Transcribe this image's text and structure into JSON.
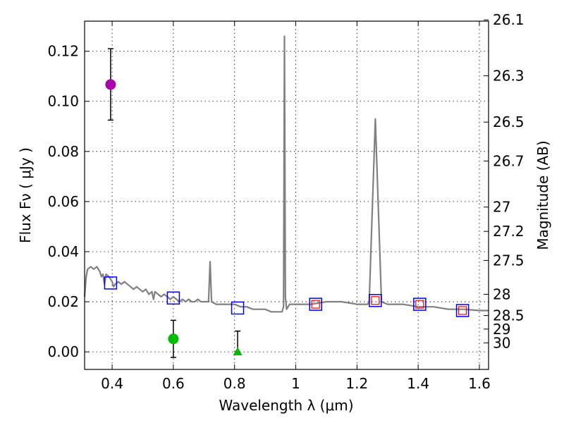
{
  "chart_data": {
    "type": "scatter",
    "xlabel": "Wavelength  λ (μm)",
    "ylabel": "Flux  Fν  ( μJy )",
    "y2label": "Magnitude (AB)",
    "xlim": [
      0.31,
      1.63
    ],
    "ylim": [
      -0.007,
      0.132
    ],
    "x_ticks": [
      0.4,
      0.6,
      0.8,
      1.0,
      1.2,
      1.4,
      1.6
    ],
    "x_tick_labels": [
      "0.4",
      "0.6",
      "0.8",
      "1",
      "1.2",
      "1.4",
      "1.6"
    ],
    "y_ticks": [
      0.0,
      0.02,
      0.04,
      0.06,
      0.08,
      0.1,
      0.12
    ],
    "y_tick_labels": [
      "0.00",
      "0.02",
      "0.04",
      "0.06",
      "0.08",
      "0.10",
      "0.12"
    ],
    "mag_ticks": [
      {
        "label": "26.1",
        "flux": 0.1325
      },
      {
        "label": "26.3",
        "flux": 0.1102
      },
      {
        "label": "26.5",
        "flux": 0.0917
      },
      {
        "label": "26.7",
        "flux": 0.0762
      },
      {
        "label": "27",
        "flux": 0.0578
      },
      {
        "label": "27.2",
        "flux": 0.0481
      },
      {
        "label": "27.5",
        "flux": 0.0365
      },
      {
        "label": "28",
        "flux": 0.023
      },
      {
        "label": "28.5",
        "flux": 0.0145
      },
      {
        "label": "29",
        "flux": 0.0091
      },
      {
        "label": "30",
        "flux": 0.0036
      }
    ],
    "grid": true,
    "series": [
      {
        "name": "model spectrum",
        "kind": "line",
        "color": "#808080",
        "points": [
          [
            0.31,
            0.022
          ],
          [
            0.315,
            0.03
          ],
          [
            0.32,
            0.033
          ],
          [
            0.33,
            0.034
          ],
          [
            0.34,
            0.033
          ],
          [
            0.35,
            0.034
          ],
          [
            0.36,
            0.032
          ],
          [
            0.365,
            0.03
          ],
          [
            0.37,
            0.031
          ],
          [
            0.375,
            0.027
          ],
          [
            0.38,
            0.031
          ],
          [
            0.39,
            0.03
          ],
          [
            0.4,
            0.028
          ],
          [
            0.405,
            0.026
          ],
          [
            0.41,
            0.027
          ],
          [
            0.42,
            0.028
          ],
          [
            0.43,
            0.027
          ],
          [
            0.44,
            0.028
          ],
          [
            0.45,
            0.027
          ],
          [
            0.46,
            0.026
          ],
          [
            0.47,
            0.025
          ],
          [
            0.48,
            0.026
          ],
          [
            0.49,
            0.025
          ],
          [
            0.5,
            0.024
          ],
          [
            0.51,
            0.025
          ],
          [
            0.52,
            0.023
          ],
          [
            0.53,
            0.024
          ],
          [
            0.535,
            0.021
          ],
          [
            0.54,
            0.024
          ],
          [
            0.55,
            0.023
          ],
          [
            0.56,
            0.022
          ],
          [
            0.57,
            0.023
          ],
          [
            0.58,
            0.022
          ],
          [
            0.59,
            0.021
          ],
          [
            0.6,
            0.022
          ],
          [
            0.61,
            0.021
          ],
          [
            0.62,
            0.02
          ],
          [
            0.63,
            0.021
          ],
          [
            0.64,
            0.02
          ],
          [
            0.65,
            0.021
          ],
          [
            0.66,
            0.02
          ],
          [
            0.67,
            0.02
          ],
          [
            0.68,
            0.021
          ],
          [
            0.69,
            0.02
          ],
          [
            0.7,
            0.02
          ],
          [
            0.715,
            0.02
          ],
          [
            0.72,
            0.036
          ],
          [
            0.725,
            0.02
          ],
          [
            0.74,
            0.019
          ],
          [
            0.76,
            0.019
          ],
          [
            0.78,
            0.019
          ],
          [
            0.8,
            0.019
          ],
          [
            0.82,
            0.018
          ],
          [
            0.84,
            0.018
          ],
          [
            0.86,
            0.017
          ],
          [
            0.88,
            0.017
          ],
          [
            0.9,
            0.017
          ],
          [
            0.92,
            0.016
          ],
          [
            0.94,
            0.016
          ],
          [
            0.955,
            0.016
          ],
          [
            0.96,
            0.018
          ],
          [
            0.963,
            0.126
          ],
          [
            0.966,
            0.022
          ],
          [
            0.97,
            0.017
          ],
          [
            0.98,
            0.019
          ],
          [
            1.0,
            0.019
          ],
          [
            1.05,
            0.019
          ],
          [
            1.1,
            0.02
          ],
          [
            1.15,
            0.02
          ],
          [
            1.2,
            0.019
          ],
          [
            1.235,
            0.019
          ],
          [
            1.24,
            0.02
          ],
          [
            1.26,
            0.093
          ],
          [
            1.28,
            0.02
          ],
          [
            1.3,
            0.019
          ],
          [
            1.35,
            0.019
          ],
          [
            1.4,
            0.018
          ],
          [
            1.45,
            0.018
          ],
          [
            1.5,
            0.017
          ],
          [
            1.55,
            0.017
          ],
          [
            1.6,
            0.0165
          ],
          [
            1.63,
            0.0165
          ]
        ]
      },
      {
        "name": "blue model boxes",
        "kind": "open-square",
        "color": "#0000ff",
        "x": [
          0.395,
          0.6,
          0.81,
          1.065,
          1.26,
          1.405,
          1.545
        ],
        "y": [
          0.0275,
          0.0215,
          0.0175,
          0.019,
          0.0205,
          0.019,
          0.0165
        ]
      },
      {
        "name": "red model boxes",
        "kind": "open-square-small",
        "color": "#ff0000",
        "x": [
          1.065,
          1.26,
          1.405,
          1.545
        ],
        "y": [
          0.019,
          0.0205,
          0.019,
          0.0165
        ]
      },
      {
        "name": "magenta photometry",
        "kind": "circle",
        "color": "#aa00aa",
        "x": [
          0.395
        ],
        "y": [
          0.1067
        ],
        "err_low": [
          0.0925
        ],
        "err_high": [
          0.121
        ]
      },
      {
        "name": "green photometry",
        "kind": "circle",
        "color": "#00bb00",
        "x": [
          0.6
        ],
        "y": [
          0.0052
        ],
        "err_low": [
          -0.0022
        ],
        "err_high": [
          0.0126
        ]
      },
      {
        "name": "green upper limit",
        "kind": "triangle",
        "color": "#00bb00",
        "x": [
          0.81
        ],
        "y": [
          0.0
        ],
        "err_low": [
          0.0
        ],
        "err_high": [
          0.0083
        ]
      }
    ]
  }
}
